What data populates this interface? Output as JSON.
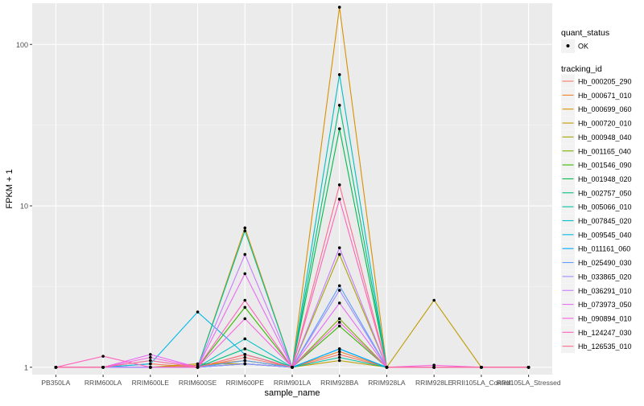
{
  "chart_data": {
    "type": "line",
    "xlabel": "sample_name",
    "ylabel": "FPKM + 1",
    "y_scale": "log10",
    "ylim": [
      0.9,
      180
    ],
    "y_ticks": [
      1,
      10,
      100
    ],
    "y_tick_labels": [
      "1",
      "10",
      "100"
    ],
    "grid": true,
    "legend_position": "right",
    "categories": [
      "PB350LA",
      "RRIM600LA",
      "RRIM600LE",
      "RRIM600SE",
      "RRIM600PE",
      "RRIM901LA",
      "RRIM928BA",
      "RRIM928LA",
      "RRIM928LE",
      "RRII105LA_Control",
      "RRII105LA_Stressed"
    ],
    "shape_legend": {
      "title": "quant_status",
      "items": [
        "OK"
      ]
    },
    "color_legend_title": "tracking_id",
    "series": [
      {
        "name": "Hb_000205_290",
        "color": "#F8766D",
        "values": [
          1,
          1,
          1.05,
          1,
          1.15,
          1,
          1.2,
          1,
          1,
          1,
          1
        ]
      },
      {
        "name": "Hb_000671_010",
        "color": "#EA8331",
        "values": [
          1,
          1,
          1,
          1.03,
          1.1,
          1,
          1.25,
          1,
          1,
          1,
          1
        ]
      },
      {
        "name": "Hb_000699_060",
        "color": "#D89000",
        "values": [
          1,
          1,
          1,
          1,
          7.3,
          1,
          170,
          1,
          1,
          1,
          1
        ]
      },
      {
        "name": "Hb_000720_010",
        "color": "#C09B00",
        "values": [
          1,
          1,
          1,
          1.05,
          1.05,
          1,
          1.1,
          1,
          2.6,
          1,
          1
        ]
      },
      {
        "name": "Hb_000948_040",
        "color": "#A3A500",
        "values": [
          1,
          1,
          1,
          1,
          1.2,
          1,
          5,
          1,
          1,
          1,
          1
        ]
      },
      {
        "name": "Hb_001165_040",
        "color": "#7CAE00",
        "values": [
          1,
          1,
          1,
          1,
          1.1,
          1,
          2.0,
          1,
          1,
          1,
          1
        ]
      },
      {
        "name": "Hb_001546_090",
        "color": "#39B600",
        "values": [
          1,
          1,
          1,
          1,
          2.35,
          1,
          1.8,
          1,
          1,
          1,
          1
        ]
      },
      {
        "name": "Hb_001948_020",
        "color": "#00BB4E",
        "values": [
          1,
          1,
          1,
          1,
          1.05,
          1,
          30,
          1,
          1,
          1,
          1
        ]
      },
      {
        "name": "Hb_002757_050",
        "color": "#00BF7D",
        "values": [
          1,
          1,
          1,
          1,
          1.3,
          1,
          42,
          1,
          1,
          1,
          1
        ]
      },
      {
        "name": "Hb_005066_010",
        "color": "#00C1A3",
        "values": [
          1,
          1,
          1,
          1,
          7.0,
          1,
          1.15,
          1,
          1,
          1,
          1
        ]
      },
      {
        "name": "Hb_007845_020",
        "color": "#00BFC4",
        "values": [
          1,
          1,
          1,
          1,
          1.5,
          1,
          65,
          1,
          1,
          1,
          1
        ]
      },
      {
        "name": "Hb_009545_040",
        "color": "#00B8E7",
        "values": [
          1,
          1,
          1.05,
          2.2,
          1.2,
          1,
          1.3,
          1,
          1,
          1,
          1
        ]
      },
      {
        "name": "Hb_011161_060",
        "color": "#00A9FF",
        "values": [
          1,
          1,
          1,
          1,
          1.05,
          1,
          1.3,
          1,
          1,
          1,
          1
        ]
      },
      {
        "name": "Hb_025490_030",
        "color": "#619CFF",
        "values": [
          1,
          1,
          1.1,
          1,
          1.1,
          1,
          3.2,
          1,
          1,
          1,
          1
        ]
      },
      {
        "name": "Hb_033865_020",
        "color": "#9F8CFF",
        "values": [
          1,
          1,
          1,
          1,
          1.05,
          1,
          3.0,
          1,
          1,
          1,
          1
        ]
      },
      {
        "name": "Hb_036291_010",
        "color": "#C77CFF",
        "values": [
          1,
          1,
          1,
          1,
          5.0,
          1,
          5.5,
          1,
          1,
          1,
          1
        ]
      },
      {
        "name": "Hb_073973_050",
        "color": "#E76BF3",
        "values": [
          1,
          1,
          1.2,
          1,
          3.8,
          1,
          2.5,
          1,
          1,
          1,
          1
        ]
      },
      {
        "name": "Hb_090894_010",
        "color": "#F763E0",
        "values": [
          1,
          1,
          1.15,
          1,
          2.0,
          1,
          1.9,
          1,
          1.03,
          1,
          1
        ]
      },
      {
        "name": "Hb_124247_030",
        "color": "#FF62BC",
        "values": [
          1,
          1.17,
          1,
          1,
          2.6,
          1,
          11,
          1,
          1,
          1,
          1
        ]
      },
      {
        "name": "Hb_126535_010",
        "color": "#FF6C91",
        "values": [
          1,
          1,
          1.1,
          1,
          1.2,
          1,
          13.5,
          1,
          1,
          1,
          1
        ]
      }
    ]
  }
}
